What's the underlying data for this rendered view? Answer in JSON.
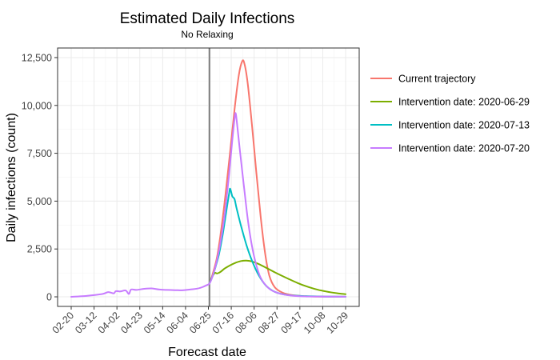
{
  "chart_data": {
    "type": "line",
    "title": "Estimated Daily Infections",
    "subtitle": "No Relaxing",
    "xlabel": "Forecast date",
    "ylabel": "Daily infections (count)",
    "x_ticks": [
      "02-20",
      "03-12",
      "04-02",
      "04-23",
      "05-14",
      "06-04",
      "06-25",
      "07-16",
      "08-06",
      "08-27",
      "09-17",
      "10-08",
      "10-29"
    ],
    "y_ticks": [
      "0",
      "2,500",
      "5,000",
      "7,500",
      "10,000",
      "12,500"
    ],
    "xlim": [
      "2020-02-20",
      "2020-10-29"
    ],
    "ylim": [
      -500,
      13000
    ],
    "grid": true,
    "legend_position": "right",
    "vertical_line": "2020-06-26",
    "series": [
      {
        "name": "Current trajectory",
        "color": "#F8766D",
        "points": [
          [
            "2020-06-26",
            700
          ],
          [
            "2020-06-29",
            1200
          ],
          [
            "2020-07-03",
            2100
          ],
          [
            "2020-07-07",
            3600
          ],
          [
            "2020-07-11",
            5500
          ],
          [
            "2020-07-15",
            7600
          ],
          [
            "2020-07-19",
            9800
          ],
          [
            "2020-07-23",
            11600
          ],
          [
            "2020-07-26",
            12300
          ],
          [
            "2020-07-28",
            12200
          ],
          [
            "2020-07-31",
            11200
          ],
          [
            "2020-08-04",
            9000
          ],
          [
            "2020-08-08",
            6500
          ],
          [
            "2020-08-12",
            4200
          ],
          [
            "2020-08-16",
            2300
          ],
          [
            "2020-08-20",
            1100
          ],
          [
            "2020-08-25",
            500
          ],
          [
            "2020-09-01",
            220
          ],
          [
            "2020-09-10",
            90
          ],
          [
            "2020-09-20",
            40
          ],
          [
            "2020-10-01",
            15
          ],
          [
            "2020-10-29",
            5
          ]
        ]
      },
      {
        "name": "Intervention date: 2020-06-29",
        "color": "#7CAE00",
        "points": [
          [
            "2020-06-26",
            700
          ],
          [
            "2020-06-29",
            1100
          ],
          [
            "2020-07-01",
            1250
          ],
          [
            "2020-07-03",
            1220
          ],
          [
            "2020-07-06",
            1300
          ],
          [
            "2020-07-10",
            1480
          ],
          [
            "2020-07-15",
            1650
          ],
          [
            "2020-07-20",
            1780
          ],
          [
            "2020-07-25",
            1870
          ],
          [
            "2020-07-30",
            1890
          ],
          [
            "2020-08-04",
            1850
          ],
          [
            "2020-08-10",
            1720
          ],
          [
            "2020-08-17",
            1520
          ],
          [
            "2020-08-25",
            1280
          ],
          [
            "2020-09-05",
            980
          ],
          [
            "2020-09-15",
            720
          ],
          [
            "2020-09-25",
            510
          ],
          [
            "2020-10-05",
            350
          ],
          [
            "2020-10-15",
            240
          ],
          [
            "2020-10-22",
            180
          ],
          [
            "2020-10-29",
            140
          ]
        ]
      },
      {
        "name": "Intervention date: 2020-07-13",
        "color": "#00BFC4",
        "points": [
          [
            "2020-06-26",
            700
          ],
          [
            "2020-06-29",
            1100
          ],
          [
            "2020-07-02",
            1650
          ],
          [
            "2020-07-05",
            2300
          ],
          [
            "2020-07-08",
            3200
          ],
          [
            "2020-07-11",
            4300
          ],
          [
            "2020-07-14",
            5400
          ],
          [
            "2020-07-15",
            5650
          ],
          [
            "2020-07-17",
            5250
          ],
          [
            "2020-07-19",
            5100
          ],
          [
            "2020-07-21",
            4600
          ],
          [
            "2020-07-25",
            3700
          ],
          [
            "2020-07-30",
            2700
          ],
          [
            "2020-08-04",
            1900
          ],
          [
            "2020-08-10",
            1150
          ],
          [
            "2020-08-17",
            580
          ],
          [
            "2020-08-25",
            260
          ],
          [
            "2020-09-05",
            100
          ],
          [
            "2020-09-20",
            40
          ],
          [
            "2020-10-10",
            15
          ],
          [
            "2020-10-29",
            5
          ]
        ]
      },
      {
        "name": "Intervention date: 2020-07-20",
        "color": "#C77CFF",
        "points": [
          [
            "2020-02-20",
            0
          ],
          [
            "2020-03-01",
            30
          ],
          [
            "2020-03-10",
            80
          ],
          [
            "2020-03-20",
            150
          ],
          [
            "2020-03-25",
            250
          ],
          [
            "2020-03-30",
            180
          ],
          [
            "2020-04-01",
            300
          ],
          [
            "2020-04-05",
            280
          ],
          [
            "2020-04-10",
            330
          ],
          [
            "2020-04-13",
            150
          ],
          [
            "2020-04-15",
            380
          ],
          [
            "2020-04-20",
            360
          ],
          [
            "2020-04-27",
            420
          ],
          [
            "2020-05-04",
            440
          ],
          [
            "2020-05-11",
            380
          ],
          [
            "2020-05-18",
            360
          ],
          [
            "2020-05-25",
            350
          ],
          [
            "2020-06-01",
            340
          ],
          [
            "2020-06-08",
            380
          ],
          [
            "2020-06-15",
            430
          ],
          [
            "2020-06-20",
            520
          ],
          [
            "2020-06-23",
            600
          ],
          [
            "2020-06-26",
            700
          ],
          [
            "2020-06-29",
            1100
          ],
          [
            "2020-07-02",
            1700
          ],
          [
            "2020-07-05",
            2500
          ],
          [
            "2020-07-08",
            3500
          ],
          [
            "2020-07-11",
            4800
          ],
          [
            "2020-07-14",
            6400
          ],
          [
            "2020-07-17",
            8200
          ],
          [
            "2020-07-19",
            9300
          ],
          [
            "2020-07-20",
            9600
          ],
          [
            "2020-07-21",
            9200
          ],
          [
            "2020-07-24",
            7600
          ],
          [
            "2020-07-28",
            5600
          ],
          [
            "2020-08-01",
            3700
          ],
          [
            "2020-08-06",
            2100
          ],
          [
            "2020-08-12",
            1000
          ],
          [
            "2020-08-20",
            420
          ],
          [
            "2020-08-30",
            160
          ],
          [
            "2020-09-10",
            60
          ],
          [
            "2020-09-25",
            20
          ],
          [
            "2020-10-29",
            5
          ]
        ]
      }
    ]
  }
}
